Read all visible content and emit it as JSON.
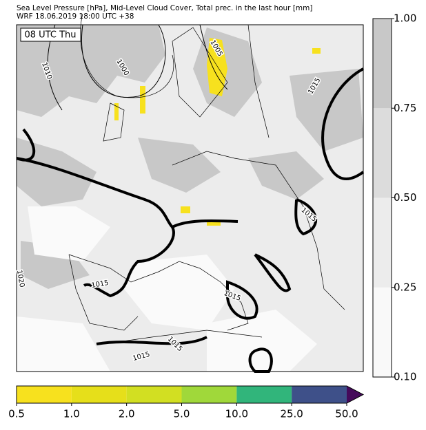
{
  "header": {
    "line1": "Sea Level Pressure [hPa], Mid-Level Cloud Cover, Total prec. in the last hour [mm]",
    "line2": "WRF 18.06.2019 18:00 UTC +38"
  },
  "time_label": "08 UTC Thu",
  "isobar_labels": [
    "1010",
    "1000",
    "1005",
    "1015",
    "1015",
    "1020",
    "1015",
    "1015",
    "1015",
    "1015"
  ],
  "cloud_colorbar": {
    "ticks": [
      {
        "value": 0.1,
        "label": "0.10"
      },
      {
        "value": 0.25,
        "label": "0.25"
      },
      {
        "value": 0.5,
        "label": "0.50"
      },
      {
        "value": 0.75,
        "label": "0.75"
      },
      {
        "value": 1,
        "label": "1.00"
      }
    ],
    "colors": [
      "#f9f9f9",
      "#ececec",
      "#dcdcdc",
      "#c8c8c8"
    ]
  },
  "precip_colorbar": {
    "ticks": [
      {
        "value": 0.5,
        "label": "0.5"
      },
      {
        "value": 1,
        "label": "1.0"
      },
      {
        "value": 2,
        "label": "2.0"
      },
      {
        "value": 5,
        "label": "5.0"
      },
      {
        "value": 10,
        "label": "10.0"
      },
      {
        "value": 25,
        "label": "25.0"
      },
      {
        "value": 50,
        "label": "50.0"
      }
    ],
    "colors": [
      "#f7e11e",
      "#e6df1a",
      "#d2df22",
      "#a0d83a",
      "#31b57b",
      "#3e5089"
    ],
    "over_color": "#450a5a"
  }
}
